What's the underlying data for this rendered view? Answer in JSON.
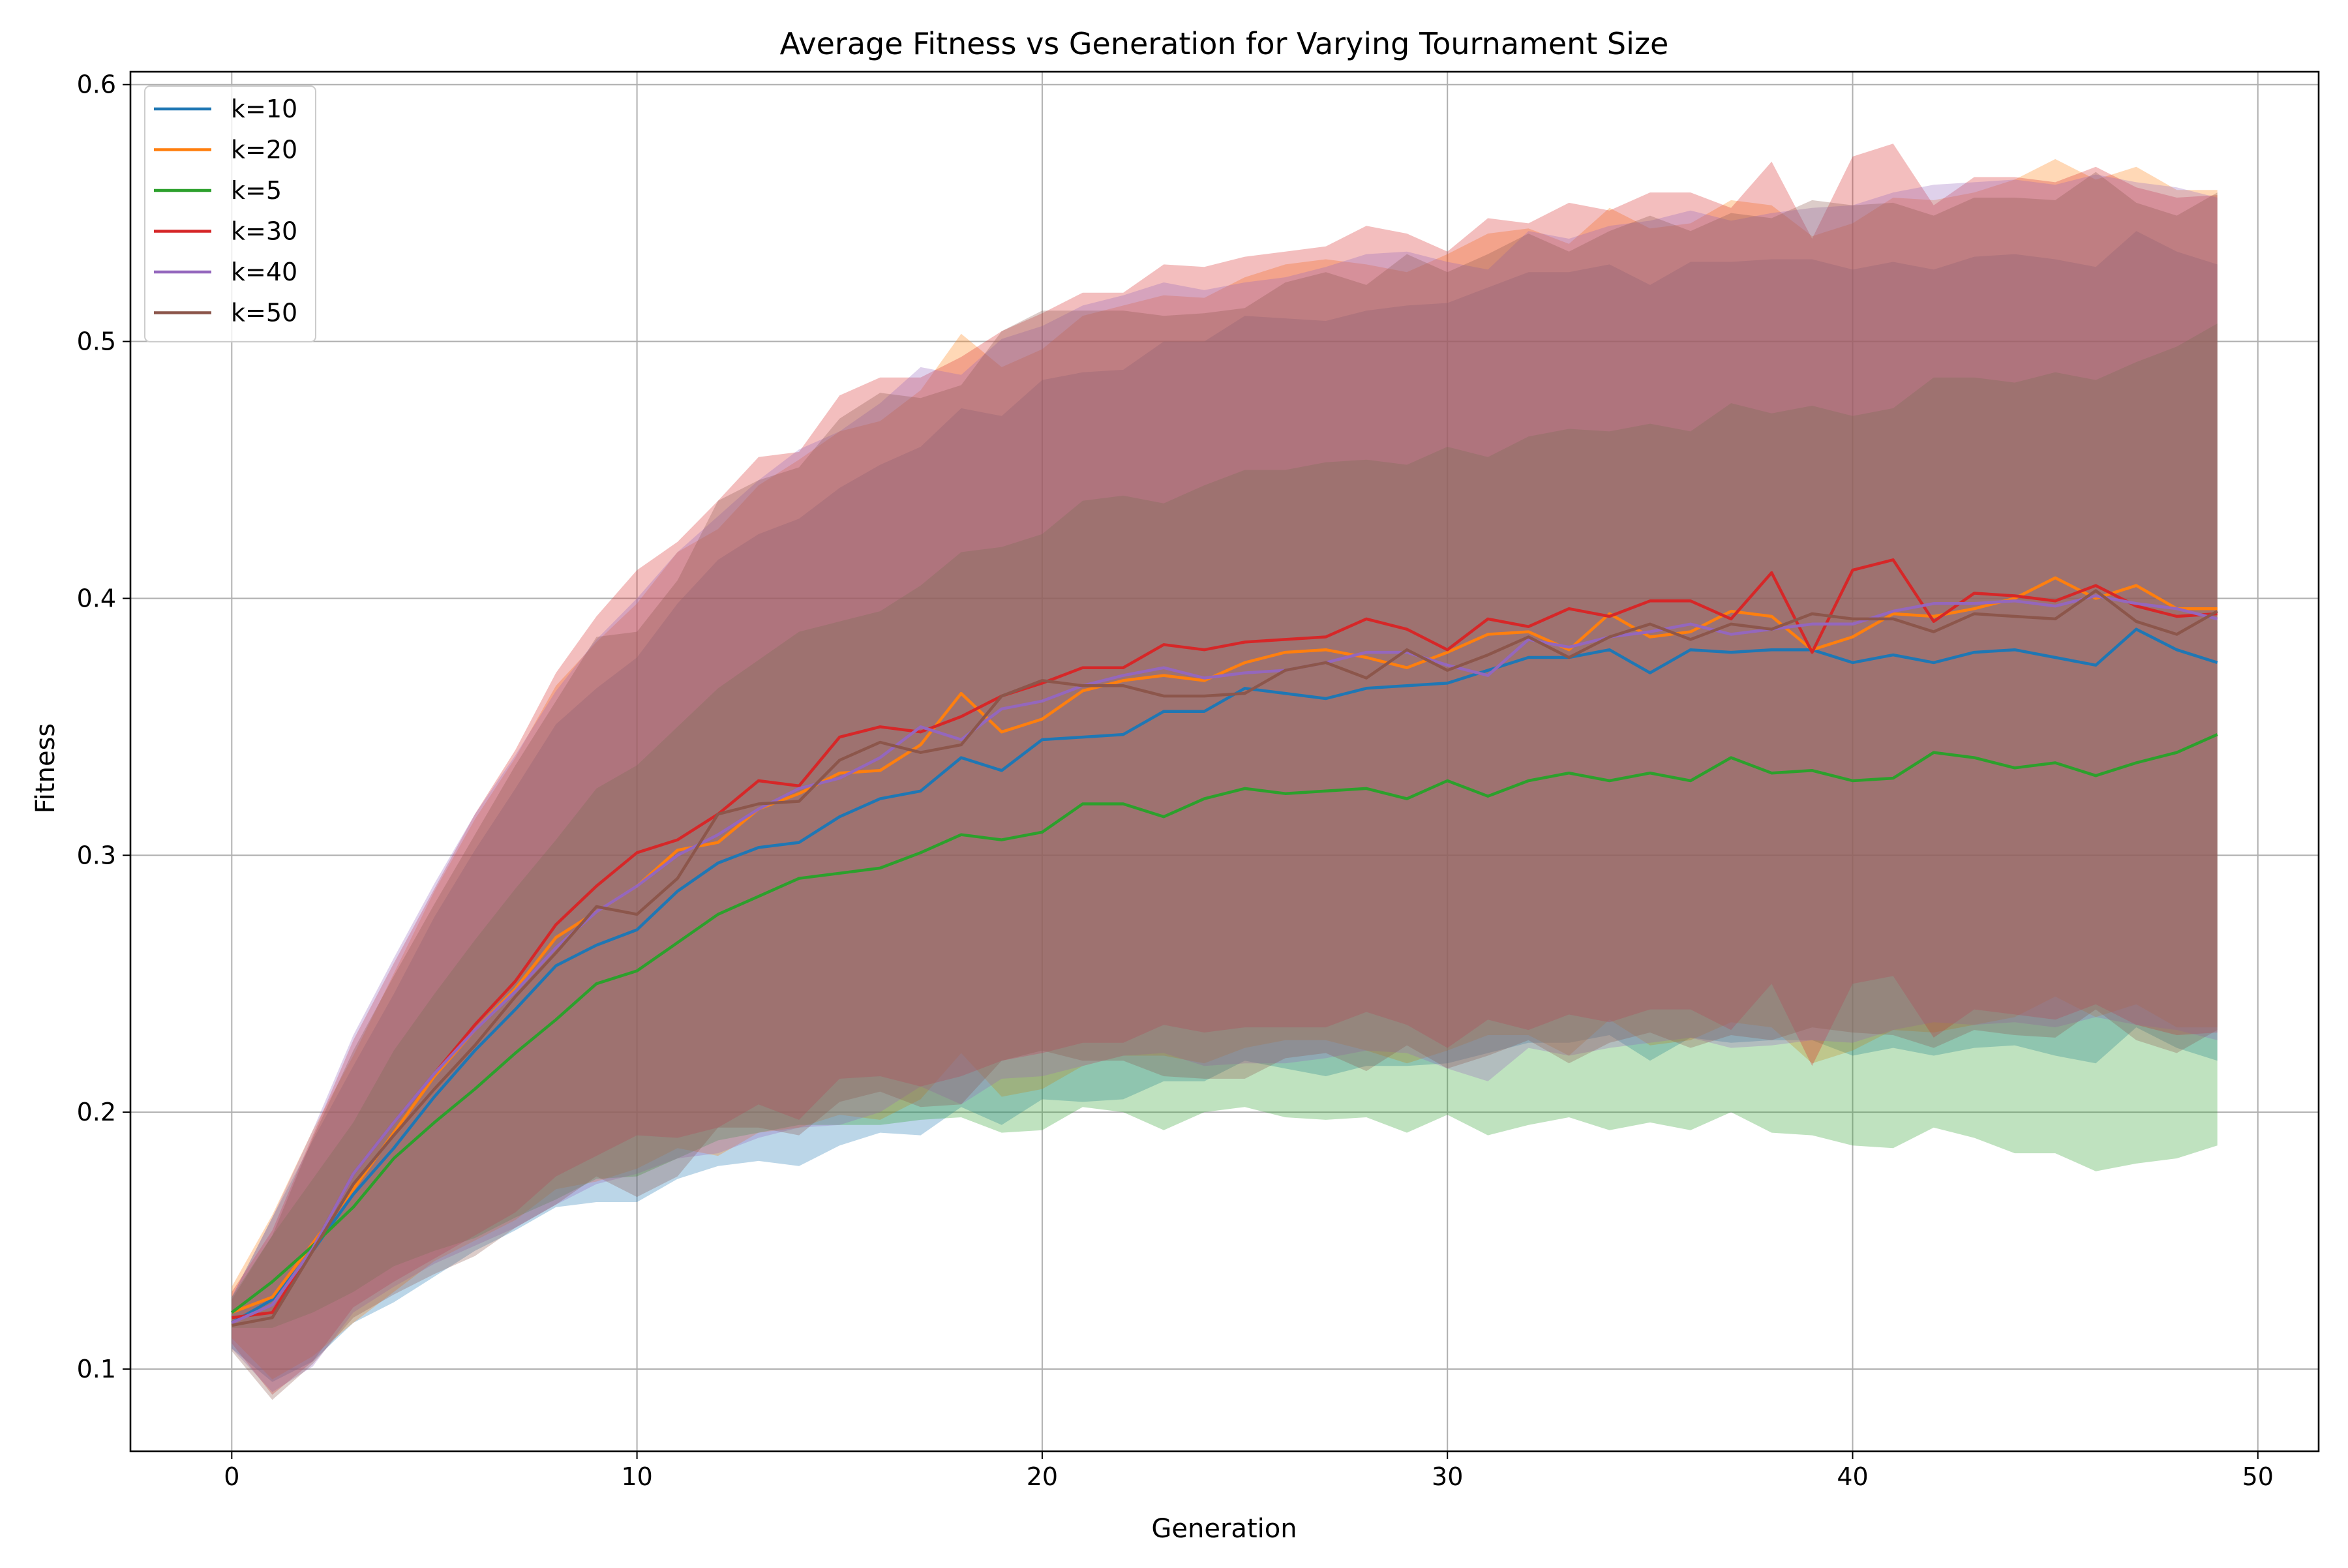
{
  "chart_data": {
    "type": "line",
    "title": "Average Fitness vs Generation for Varying Tournament Size",
    "xlabel": "Generation",
    "ylabel": "Fitness",
    "xlim": [
      -2.5,
      51.5
    ],
    "ylim": [
      0.068,
      0.605
    ],
    "xticks": [
      0,
      10,
      20,
      30,
      40,
      50
    ],
    "yticks": [
      0.1,
      0.2,
      0.3,
      0.4,
      0.5,
      0.6
    ],
    "xtick_labels": [
      "0",
      "10",
      "20",
      "30",
      "40",
      "50"
    ],
    "ytick_labels": [
      "0.1",
      "0.2",
      "0.3",
      "0.4",
      "0.5",
      "0.6"
    ],
    "grid": true,
    "legend_position": "top-left",
    "shaded_band": "mean ± standard deviation per series",
    "series": [
      {
        "name": "k=10",
        "color": "#1f77b4",
        "values": [
          0.118,
          0.127,
          0.146,
          0.168,
          0.186,
          0.206,
          0.224,
          0.24,
          0.257,
          0.265,
          0.271,
          0.286,
          0.297,
          0.303,
          0.305,
          0.315,
          0.322,
          0.325,
          0.338,
          0.333,
          0.345,
          0.346,
          0.347,
          0.356,
          0.356,
          0.365,
          0.363,
          0.361,
          0.365,
          0.366,
          0.367,
          0.372,
          0.377,
          0.377,
          0.38,
          0.371,
          0.38,
          0.379,
          0.38,
          0.38,
          0.375,
          0.378,
          0.375,
          0.379,
          0.38,
          0.377,
          0.374,
          0.388,
          0.38,
          0.375
        ],
        "spread": [
          0.01,
          0.032,
          0.043,
          0.05,
          0.06,
          0.07,
          0.078,
          0.086,
          0.094,
          0.1,
          0.106,
          0.112,
          0.118,
          0.122,
          0.126,
          0.128,
          0.13,
          0.134,
          0.136,
          0.138,
          0.14,
          0.142,
          0.142,
          0.144,
          0.144,
          0.145,
          0.146,
          0.147,
          0.147,
          0.148,
          0.148,
          0.149,
          0.15,
          0.15,
          0.15,
          0.151,
          0.151,
          0.152,
          0.152,
          0.152,
          0.153,
          0.153,
          0.153,
          0.154,
          0.154,
          0.155,
          0.155,
          0.155,
          0.155,
          0.155
        ]
      },
      {
        "name": "k=20",
        "color": "#ff7f0e",
        "values": [
          0.122,
          0.128,
          0.149,
          0.17,
          0.192,
          0.214,
          0.232,
          0.248,
          0.268,
          0.278,
          0.288,
          0.302,
          0.305,
          0.318,
          0.324,
          0.332,
          0.333,
          0.343,
          0.363,
          0.348,
          0.353,
          0.364,
          0.368,
          0.37,
          0.368,
          0.375,
          0.379,
          0.38,
          0.377,
          0.373,
          0.379,
          0.386,
          0.387,
          0.38,
          0.394,
          0.385,
          0.387,
          0.395,
          0.393,
          0.38,
          0.385,
          0.394,
          0.393,
          0.396,
          0.4,
          0.408,
          0.4,
          0.405,
          0.396,
          0.396
        ],
        "spread": [
          0.01,
          0.032,
          0.044,
          0.052,
          0.062,
          0.072,
          0.082,
          0.09,
          0.098,
          0.105,
          0.11,
          0.116,
          0.122,
          0.126,
          0.13,
          0.133,
          0.136,
          0.138,
          0.14,
          0.142,
          0.144,
          0.146,
          0.146,
          0.148,
          0.149,
          0.15,
          0.151,
          0.152,
          0.153,
          0.154,
          0.155,
          0.156,
          0.157,
          0.158,
          0.158,
          0.159,
          0.159,
          0.16,
          0.16,
          0.161,
          0.161,
          0.162,
          0.162,
          0.162,
          0.163,
          0.163,
          0.163,
          0.163,
          0.163,
          0.163
        ]
      },
      {
        "name": "k=5",
        "color": "#2ca02c",
        "values": [
          0.122,
          0.134,
          0.148,
          0.163,
          0.182,
          0.196,
          0.209,
          0.223,
          0.236,
          0.25,
          0.255,
          0.266,
          0.277,
          0.284,
          0.291,
          0.293,
          0.295,
          0.301,
          0.308,
          0.306,
          0.309,
          0.32,
          0.32,
          0.315,
          0.322,
          0.326,
          0.324,
          0.325,
          0.326,
          0.322,
          0.329,
          0.323,
          0.329,
          0.332,
          0.329,
          0.332,
          0.329,
          0.338,
          0.332,
          0.333,
          0.329,
          0.33,
          0.34,
          0.338,
          0.334,
          0.336,
          0.331,
          0.336,
          0.34,
          0.347
        ],
        "spread": [
          0.006,
          0.018,
          0.026,
          0.033,
          0.042,
          0.05,
          0.058,
          0.064,
          0.07,
          0.076,
          0.08,
          0.084,
          0.088,
          0.092,
          0.096,
          0.098,
          0.1,
          0.104,
          0.11,
          0.114,
          0.116,
          0.118,
          0.12,
          0.122,
          0.122,
          0.124,
          0.126,
          0.128,
          0.128,
          0.13,
          0.13,
          0.132,
          0.134,
          0.134,
          0.136,
          0.136,
          0.136,
          0.138,
          0.14,
          0.142,
          0.142,
          0.144,
          0.146,
          0.148,
          0.15,
          0.152,
          0.154,
          0.156,
          0.158,
          0.16
        ]
      },
      {
        "name": "k=30",
        "color": "#d62728",
        "values": [
          0.12,
          0.122,
          0.147,
          0.176,
          0.196,
          0.215,
          0.234,
          0.251,
          0.273,
          0.288,
          0.301,
          0.306,
          0.316,
          0.329,
          0.327,
          0.346,
          0.35,
          0.348,
          0.354,
          0.362,
          0.367,
          0.373,
          0.373,
          0.382,
          0.38,
          0.383,
          0.384,
          0.385,
          0.392,
          0.388,
          0.38,
          0.392,
          0.389,
          0.396,
          0.393,
          0.399,
          0.399,
          0.392,
          0.41,
          0.379,
          0.411,
          0.415,
          0.391,
          0.402,
          0.401,
          0.399,
          0.405,
          0.397,
          0.393,
          0.394
        ],
        "spread": [
          0.01,
          0.032,
          0.044,
          0.052,
          0.062,
          0.072,
          0.082,
          0.09,
          0.098,
          0.105,
          0.11,
          0.116,
          0.122,
          0.126,
          0.13,
          0.133,
          0.136,
          0.138,
          0.14,
          0.142,
          0.144,
          0.146,
          0.146,
          0.148,
          0.149,
          0.15,
          0.151,
          0.152,
          0.153,
          0.154,
          0.155,
          0.156,
          0.157,
          0.158,
          0.158,
          0.159,
          0.159,
          0.16,
          0.16,
          0.161,
          0.161,
          0.162,
          0.162,
          0.162,
          0.163,
          0.163,
          0.163,
          0.163,
          0.163,
          0.163
        ]
      },
      {
        "name": "k=40",
        "color": "#9467bd",
        "values": [
          0.118,
          0.125,
          0.147,
          0.176,
          0.196,
          0.215,
          0.232,
          0.247,
          0.264,
          0.278,
          0.288,
          0.3,
          0.308,
          0.318,
          0.326,
          0.33,
          0.338,
          0.35,
          0.345,
          0.357,
          0.36,
          0.366,
          0.37,
          0.373,
          0.369,
          0.371,
          0.372,
          0.375,
          0.379,
          0.379,
          0.374,
          0.37,
          0.384,
          0.381,
          0.385,
          0.387,
          0.39,
          0.386,
          0.388,
          0.39,
          0.39,
          0.395,
          0.398,
          0.398,
          0.399,
          0.397,
          0.401,
          0.398,
          0.396,
          0.392
        ],
        "spread": [
          0.01,
          0.034,
          0.046,
          0.054,
          0.064,
          0.074,
          0.084,
          0.092,
          0.1,
          0.106,
          0.112,
          0.118,
          0.124,
          0.128,
          0.132,
          0.135,
          0.138,
          0.14,
          0.142,
          0.144,
          0.146,
          0.148,
          0.148,
          0.15,
          0.151,
          0.152,
          0.153,
          0.154,
          0.155,
          0.156,
          0.157,
          0.158,
          0.159,
          0.159,
          0.16,
          0.16,
          0.161,
          0.161,
          0.162,
          0.162,
          0.163,
          0.163,
          0.163,
          0.164,
          0.164,
          0.164,
          0.164,
          0.164,
          0.164,
          0.164
        ]
      },
      {
        "name": "k=50",
        "color": "#8c564b",
        "values": [
          0.117,
          0.12,
          0.146,
          0.172,
          0.191,
          0.209,
          0.226,
          0.245,
          0.262,
          0.28,
          0.277,
          0.291,
          0.316,
          0.32,
          0.321,
          0.337,
          0.344,
          0.34,
          0.343,
          0.362,
          0.368,
          0.366,
          0.366,
          0.362,
          0.362,
          0.363,
          0.372,
          0.375,
          0.369,
          0.38,
          0.372,
          0.378,
          0.385,
          0.377,
          0.385,
          0.39,
          0.384,
          0.39,
          0.388,
          0.394,
          0.392,
          0.392,
          0.387,
          0.394,
          0.393,
          0.392,
          0.403,
          0.391,
          0.386,
          0.395
        ],
        "spread": [
          0.01,
          0.032,
          0.044,
          0.052,
          0.062,
          0.072,
          0.082,
          0.09,
          0.098,
          0.105,
          0.11,
          0.116,
          0.122,
          0.126,
          0.13,
          0.133,
          0.136,
          0.138,
          0.14,
          0.142,
          0.144,
          0.146,
          0.146,
          0.148,
          0.149,
          0.15,
          0.151,
          0.152,
          0.153,
          0.154,
          0.155,
          0.156,
          0.157,
          0.158,
          0.158,
          0.159,
          0.159,
          0.16,
          0.16,
          0.161,
          0.161,
          0.162,
          0.162,
          0.162,
          0.163,
          0.163,
          0.163,
          0.163,
          0.163,
          0.163
        ]
      }
    ]
  }
}
